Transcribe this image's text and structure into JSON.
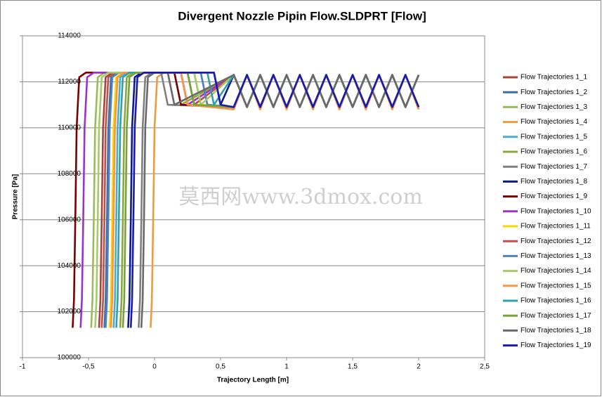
{
  "chart_data": {
    "type": "line",
    "title": "Divergent Nozzle Pipin Flow.SLDPRT [Flow]",
    "x_label": "Trajectory Length [m]",
    "y_label": "Pressure [Pa]",
    "watermark": "莫西网www.3dmox.com",
    "xlim": [
      -1,
      2.5
    ],
    "xticks": [
      -1,
      {
        "value": -0.5,
        "label": "-0,5"
      },
      0,
      {
        "value": 0.5,
        "label": "0,5"
      },
      1,
      {
        "value": 1.5,
        "label": "1,5"
      },
      2,
      {
        "value": 2.5,
        "label": "2,5"
      }
    ],
    "ylim": [
      100000,
      114000
    ],
    "yticks": [
      100000,
      102000,
      104000,
      106000,
      108000,
      110000,
      112000,
      114000
    ],
    "grid": true,
    "legend": "right",
    "series": [
      {
        "name": "Flow Trajectories 1_1",
        "color": "#a5453b",
        "x": [
          -0.42,
          -0.41,
          -0.4,
          -0.39,
          -0.37,
          -0.32,
          0.2,
          0.25,
          0.6,
          0.7,
          0.8,
          0.9,
          1,
          1.1,
          1.2,
          1.3,
          1.4,
          1.5,
          1.6,
          1.7,
          1.8,
          1.9,
          2
        ],
        "values": [
          101300,
          102500,
          106000,
          110000,
          112200,
          112400,
          112400,
          111000,
          110900,
          112300,
          110900,
          112300,
          110900,
          112300,
          110900,
          112300,
          110900,
          112300,
          110900,
          112300,
          110900,
          112300,
          110900
        ]
      },
      {
        "name": "Flow Trajectories 1_2",
        "color": "#3f6f9f",
        "x": [
          -0.38,
          -0.37,
          -0.36,
          -0.35,
          -0.33,
          -0.28,
          0.25,
          0.3,
          0.6,
          0.7,
          0.8,
          0.9,
          1,
          1.1,
          1.2,
          1.3,
          1.4,
          1.5,
          1.6,
          1.7,
          1.8,
          1.9,
          2
        ],
        "values": [
          101300,
          102500,
          106000,
          110000,
          112200,
          112400,
          112400,
          111000,
          112300,
          110900,
          112300,
          110900,
          112300,
          110900,
          112300,
          110900,
          112300,
          110900,
          112300,
          110900,
          112300,
          110900,
          112300
        ]
      },
      {
        "name": "Flow Trajectories 1_3",
        "color": "#9bbb59",
        "x": [
          -0.48,
          -0.47,
          -0.46,
          -0.45,
          -0.43,
          -0.38,
          0.3,
          0.35,
          0.6,
          0.7,
          0.8,
          0.9,
          1,
          1.1,
          1.2,
          1.3,
          1.4,
          1.5,
          1.6,
          1.7,
          1.8,
          1.9,
          2
        ],
        "values": [
          101300,
          102500,
          106000,
          110000,
          112200,
          112400,
          112400,
          111000,
          110800,
          112300,
          110800,
          112300,
          110800,
          112300,
          110800,
          112300,
          110800,
          112300,
          110800,
          112300,
          110800,
          112300,
          110800
        ]
      },
      {
        "name": "Flow Trajectories 1_4",
        "color": "#f09a40",
        "x": [
          -0.03,
          -0.02,
          -0.01,
          0,
          0.02,
          0.07,
          0.1,
          0.15,
          0.6,
          0.7,
          0.8,
          0.9,
          1,
          1.1,
          1.2,
          1.3,
          1.4,
          1.5,
          1.6,
          1.7,
          1.8,
          1.9,
          2
        ],
        "values": [
          101300,
          102500,
          106000,
          110000,
          112200,
          112400,
          112400,
          111000,
          112300,
          110900,
          112300,
          110900,
          112300,
          110900,
          112300,
          110900,
          112300,
          110900,
          112300,
          110900,
          112300,
          110900,
          112300
        ]
      },
      {
        "name": "Flow Trajectories 1_5",
        "color": "#4bacc6",
        "x": [
          -0.31,
          -0.3,
          -0.29,
          -0.28,
          -0.26,
          -0.21,
          0.35,
          0.4,
          0.6,
          0.7,
          0.8,
          0.9,
          1,
          1.1,
          1.2,
          1.3,
          1.4,
          1.5,
          1.6,
          1.7,
          1.8,
          1.9,
          2
        ],
        "values": [
          101300,
          102500,
          106000,
          110000,
          112200,
          112400,
          112400,
          111000,
          110900,
          112300,
          110900,
          112300,
          110900,
          112300,
          110900,
          112300,
          110900,
          112300,
          110900,
          112300,
          110900,
          112300,
          110900
        ]
      },
      {
        "name": "Flow Trajectories 1_6",
        "color": "#8aa83d",
        "x": [
          -0.26,
          -0.25,
          -0.24,
          -0.23,
          -0.21,
          -0.16,
          0.15,
          0.2,
          0.6,
          0.7,
          0.8,
          0.9,
          1,
          1.1,
          1.2,
          1.3,
          1.4,
          1.5,
          1.6,
          1.7,
          1.8,
          1.9,
          2
        ],
        "values": [
          101300,
          102500,
          106000,
          110000,
          112200,
          112400,
          112400,
          111000,
          112300,
          110900,
          112300,
          110900,
          112300,
          110900,
          112300,
          110900,
          112300,
          110900,
          112300,
          110900,
          112300,
          110900,
          112300
        ]
      },
      {
        "name": "Flow Trajectories 1_7",
        "color": "#7f7f7f",
        "x": [
          -0.12,
          -0.11,
          -0.1,
          -0.09,
          -0.07,
          -0.02,
          0.05,
          0.1,
          0.6,
          0.7,
          0.8,
          0.9,
          1,
          1.1,
          1.2,
          1.3,
          1.4,
          1.5,
          1.6,
          1.7,
          1.8,
          1.9,
          2
        ],
        "values": [
          101300,
          102500,
          106000,
          110000,
          112200,
          112400,
          112400,
          111000,
          110900,
          112300,
          110900,
          112300,
          110900,
          112300,
          110900,
          112300,
          110900,
          112300,
          110900,
          112300,
          110900,
          112300,
          110900
        ]
      },
      {
        "name": "Flow Trajectories 1_8",
        "color": "#0a1a8f",
        "x": [
          -0.2,
          -0.19,
          -0.18,
          -0.17,
          -0.15,
          -0.1,
          0.45,
          0.5,
          0.6,
          0.7,
          0.8,
          0.9,
          1,
          1.1,
          1.2,
          1.3,
          1.4,
          1.5,
          1.6,
          1.7,
          1.8,
          1.9,
          2
        ],
        "values": [
          101300,
          102500,
          106000,
          110000,
          112200,
          112400,
          112400,
          111000,
          112300,
          110900,
          112300,
          110900,
          112300,
          110900,
          112300,
          110900,
          112300,
          110900,
          112300,
          110900,
          112300,
          110900,
          112300
        ]
      },
      {
        "name": "Flow Trajectories 1_9",
        "color": "#7a0000",
        "x": [
          -0.62,
          -0.61,
          -0.6,
          -0.59,
          -0.57,
          -0.52,
          0.15,
          0.2,
          0.6,
          0.7,
          0.8,
          0.9,
          1,
          1.1,
          1.2,
          1.3,
          1.4,
          1.5,
          1.6,
          1.7,
          1.8,
          1.9,
          2
        ],
        "values": [
          101300,
          102500,
          106000,
          110000,
          112200,
          112400,
          112400,
          111000,
          110900,
          112300,
          110900,
          112300,
          110900,
          112300,
          110900,
          112300,
          110900,
          112300,
          110900,
          112300,
          110900,
          112300,
          110900
        ]
      },
      {
        "name": "Flow Trajectories 1_10",
        "color": "#9933cc",
        "x": [
          -0.56,
          -0.55,
          -0.54,
          -0.53,
          -0.51,
          -0.46,
          0.2,
          0.25,
          0.6,
          0.7,
          0.8,
          0.9,
          1,
          1.1,
          1.2,
          1.3,
          1.4,
          1.5,
          1.6,
          1.7,
          1.8,
          1.9,
          2
        ],
        "values": [
          101300,
          102500,
          106000,
          110000,
          112200,
          112400,
          112400,
          111000,
          112300,
          110900,
          112300,
          110900,
          112300,
          110900,
          112300,
          110900,
          112300,
          110900,
          112300,
          110900,
          112300,
          110900,
          112300
        ]
      },
      {
        "name": "Flow Trajectories 1_11",
        "color": "#f5d800",
        "x": [
          -0.34,
          -0.33,
          -0.32,
          -0.31,
          -0.29,
          -0.24,
          0.3,
          0.35,
          0.6,
          0.7,
          0.8,
          0.9,
          1,
          1.1,
          1.2,
          1.3,
          1.4,
          1.5,
          1.6,
          1.7,
          1.8,
          1.9,
          2
        ],
        "values": [
          101300,
          102500,
          106000,
          110000,
          112200,
          112400,
          112400,
          111000,
          110900,
          112300,
          110900,
          112300,
          110900,
          112300,
          110900,
          112300,
          110900,
          112300,
          110900,
          112300,
          110900,
          112300,
          110900
        ]
      },
      {
        "name": "Flow Trajectories 1_12",
        "color": "#c0504d",
        "x": [
          -0.4,
          -0.39,
          -0.38,
          -0.37,
          -0.35,
          -0.3,
          0.25,
          0.3,
          0.6,
          0.7,
          0.8,
          0.9,
          1,
          1.1,
          1.2,
          1.3,
          1.4,
          1.5,
          1.6,
          1.7,
          1.8,
          1.9,
          2
        ],
        "values": [
          101300,
          102500,
          106000,
          110000,
          112200,
          112400,
          112400,
          111000,
          112300,
          110900,
          112300,
          110900,
          112300,
          110900,
          112300,
          110900,
          112300,
          110900,
          112300,
          110900,
          112300,
          110900,
          112300
        ]
      },
      {
        "name": "Flow Trajectories 1_13",
        "color": "#4f81bd",
        "x": [
          -0.37,
          -0.36,
          -0.35,
          -0.34,
          -0.32,
          -0.27,
          0.35,
          0.4,
          0.6,
          0.7,
          0.8,
          0.9,
          1,
          1.1,
          1.2,
          1.3,
          1.4,
          1.5,
          1.6,
          1.7,
          1.8,
          1.9,
          2
        ],
        "values": [
          101300,
          102500,
          106000,
          110000,
          112200,
          112400,
          112400,
          111000,
          110900,
          112300,
          110900,
          112300,
          110900,
          112300,
          110900,
          112300,
          110900,
          112300,
          110900,
          112300,
          110900,
          112300,
          110900
        ]
      },
      {
        "name": "Flow Trajectories 1_14",
        "color": "#a6c96a",
        "x": [
          -0.45,
          -0.44,
          -0.43,
          -0.42,
          -0.4,
          -0.35,
          0.3,
          0.35,
          0.6,
          0.7,
          0.8,
          0.9,
          1,
          1.1,
          1.2,
          1.3,
          1.4,
          1.5,
          1.6,
          1.7,
          1.8,
          1.9,
          2
        ],
        "values": [
          101300,
          102500,
          106000,
          110000,
          112200,
          112400,
          112400,
          111000,
          112300,
          110900,
          112300,
          110900,
          112300,
          110900,
          112300,
          110900,
          112300,
          110900,
          112300,
          110900,
          112300,
          110900,
          112300
        ]
      },
      {
        "name": "Flow Trajectories 1_15",
        "color": "#f79646",
        "x": [
          -0.33,
          -0.32,
          -0.31,
          -0.3,
          -0.28,
          -0.23,
          0.2,
          0.25,
          0.6,
          0.7,
          0.8,
          0.9,
          1,
          1.1,
          1.2,
          1.3,
          1.4,
          1.5,
          1.6,
          1.7,
          1.8,
          1.9,
          2
        ],
        "values": [
          101300,
          102500,
          106000,
          110000,
          112200,
          112400,
          112400,
          111000,
          110800,
          112300,
          110800,
          112300,
          110800,
          112300,
          110800,
          112300,
          110800,
          112300,
          110800,
          112300,
          110800,
          112300,
          110800
        ]
      },
      {
        "name": "Flow Trajectories 1_16",
        "color": "#31a0a8",
        "x": [
          -0.29,
          -0.28,
          -0.27,
          -0.26,
          -0.24,
          -0.19,
          0.4,
          0.45,
          0.6,
          0.7,
          0.8,
          0.9,
          1,
          1.1,
          1.2,
          1.3,
          1.4,
          1.5,
          1.6,
          1.7,
          1.8,
          1.9,
          2
        ],
        "values": [
          101300,
          102500,
          106000,
          110000,
          112200,
          112400,
          112400,
          111000,
          112300,
          110900,
          112300,
          110900,
          112300,
          110900,
          112300,
          110900,
          112300,
          110900,
          112300,
          110900,
          112300,
          110900,
          112300
        ]
      },
      {
        "name": "Flow Trajectories 1_17",
        "color": "#77a33c",
        "x": [
          -0.24,
          -0.23,
          -0.22,
          -0.21,
          -0.19,
          -0.14,
          0.25,
          0.3,
          0.6,
          0.7,
          0.8,
          0.9,
          1,
          1.1,
          1.2,
          1.3,
          1.4,
          1.5,
          1.6,
          1.7,
          1.8,
          1.9,
          2
        ],
        "values": [
          101300,
          102500,
          106000,
          110000,
          112200,
          112400,
          112400,
          111000,
          110900,
          112300,
          110900,
          112300,
          110900,
          112300,
          110900,
          112300,
          110900,
          112300,
          110900,
          112300,
          110900,
          112300,
          110900
        ]
      },
      {
        "name": "Flow Trajectories 1_18",
        "color": "#6a6a6a",
        "x": [
          -0.1,
          -0.09,
          -0.08,
          -0.07,
          -0.05,
          0,
          0.1,
          0.15,
          0.6,
          0.7,
          0.8,
          0.9,
          1,
          1.1,
          1.2,
          1.3,
          1.4,
          1.5,
          1.6,
          1.7,
          1.8,
          1.9,
          2
        ],
        "values": [
          101300,
          102500,
          106000,
          110000,
          112200,
          112400,
          112400,
          111000,
          112300,
          110900,
          112300,
          110900,
          112300,
          110900,
          112300,
          110900,
          112300,
          110900,
          112300,
          110900,
          112300,
          110900,
          112300
        ]
      },
      {
        "name": "Flow Trajectories 1_19",
        "color": "#1a1ab0",
        "x": [
          -0.18,
          -0.17,
          -0.16,
          -0.15,
          -0.13,
          -0.08,
          0.45,
          0.5,
          0.6,
          0.7,
          0.8,
          0.9,
          1,
          1.1,
          1.2,
          1.3,
          1.4,
          1.5,
          1.6,
          1.7,
          1.8,
          1.9,
          2
        ],
        "values": [
          101300,
          102500,
          106000,
          110000,
          112200,
          112400,
          112400,
          111000,
          110900,
          112300,
          110900,
          112300,
          110900,
          112300,
          110900,
          112300,
          110900,
          112300,
          110900,
          112300,
          110900,
          112300,
          110900
        ]
      }
    ]
  }
}
